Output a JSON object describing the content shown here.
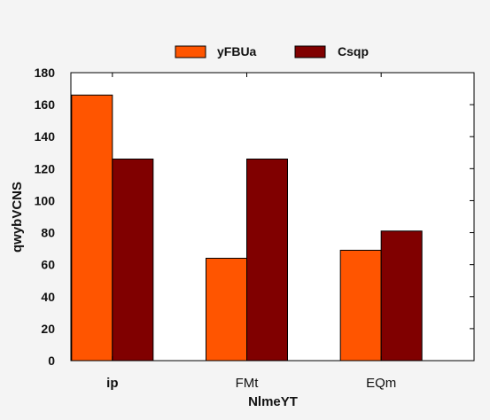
{
  "chart_data": {
    "type": "bar",
    "title": "",
    "xlabel": "NlmeYT",
    "ylabel": "qwybVCNS",
    "categories": [
      "ip",
      "FMt",
      "EQm"
    ],
    "category_bold": [
      true,
      false,
      false
    ],
    "series": [
      {
        "name": "yFBUa",
        "color": "#ff5500",
        "values": [
          166,
          64,
          69
        ]
      },
      {
        "name": "Csqp",
        "color": "#800000",
        "values": [
          126,
          126,
          81
        ]
      }
    ],
    "ylim": [
      0,
      180
    ],
    "yticks": [
      "0",
      "20",
      "40",
      "60",
      "80",
      "100",
      "120",
      "140",
      "160",
      "180"
    ],
    "grid": false,
    "legend_position": "top-center"
  }
}
